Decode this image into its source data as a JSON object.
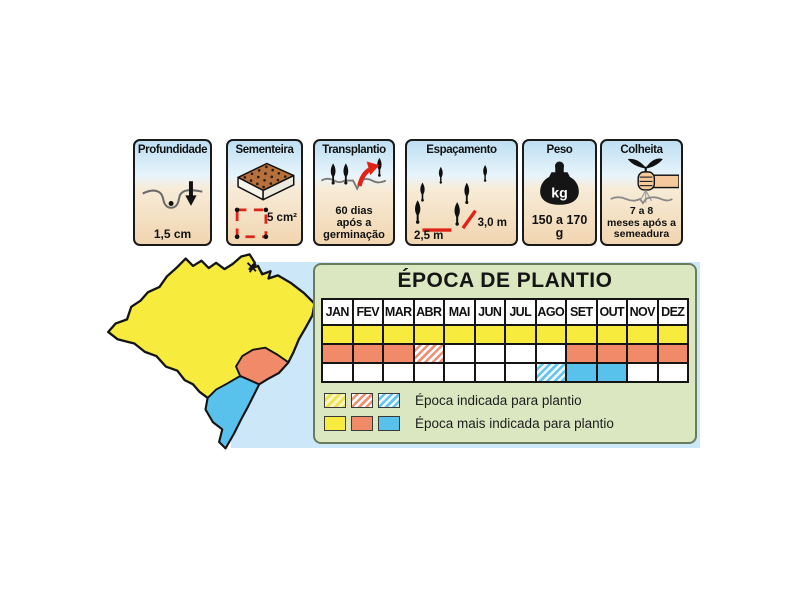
{
  "colors": {
    "yellow": "#F7EC3D",
    "salmon": "#F08A69",
    "blue": "#58C1EC",
    "red_accent": "#DF2417",
    "panel_bg": "#DBE7C0",
    "panel_border": "#6B7C5E",
    "light_blue_bg": "#CBE7F8",
    "card_sky": "#BEDFF2",
    "card_soil": "#F1D5B0",
    "tray_brown": "#B5703C",
    "skin": "#F6C99C"
  },
  "cards": [
    {
      "title": "Profundidade",
      "value": "1,5 cm"
    },
    {
      "title": "Sementeira",
      "value": "5 cm²"
    },
    {
      "title": "Transplantio",
      "value": "60 dias\napós a\ngerminação"
    },
    {
      "title": "Espaçamento",
      "values": [
        "2,5 m",
        "3,0 m"
      ]
    },
    {
      "title": "Peso",
      "icon_label": "kg",
      "value": "150 a 170\ng"
    },
    {
      "title": "Colheita",
      "value": "7 a 8\nmeses após a\nsemeadura"
    }
  ],
  "map": {
    "country": "Brasil",
    "regions": [
      {
        "name": "north-center",
        "color": "yellow"
      },
      {
        "name": "southeast",
        "color": "salmon"
      },
      {
        "name": "south",
        "color": "blue"
      }
    ]
  },
  "calendar": {
    "title": "ÉPOCA DE PLANTIO",
    "months": [
      "JAN",
      "FEV",
      "MAR",
      "ABR",
      "MAI",
      "JUN",
      "JUL",
      "AGO",
      "SET",
      "OUT",
      "NOV",
      "DEZ"
    ],
    "rows": [
      {
        "region": "north-center",
        "color": "yellow",
        "cells": [
          "solid",
          "solid",
          "solid",
          "solid",
          "solid",
          "solid",
          "solid",
          "solid",
          "solid",
          "solid",
          "solid",
          "solid"
        ]
      },
      {
        "region": "southeast",
        "color": "salmon",
        "cells": [
          "solid",
          "solid",
          "solid",
          "hatched",
          "empty",
          "empty",
          "empty",
          "empty",
          "solid",
          "solid",
          "solid",
          "solid"
        ]
      },
      {
        "region": "south",
        "color": "blue",
        "cells": [
          "empty",
          "empty",
          "empty",
          "empty",
          "empty",
          "empty",
          "empty",
          "hatched",
          "solid",
          "solid",
          "empty",
          "empty"
        ]
      }
    ],
    "legend": [
      {
        "style": "hatched",
        "label": "Época indicada para plantio"
      },
      {
        "style": "solid",
        "label": "Época mais indicada para plantio"
      }
    ]
  }
}
